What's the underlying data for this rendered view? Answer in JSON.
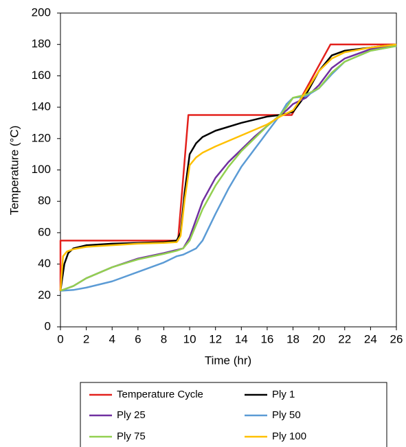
{
  "chart_data": {
    "type": "line",
    "xlabel": "Time (hr)",
    "ylabel": "Temperature (°C)",
    "xlim": [
      0,
      26
    ],
    "xticks": [
      0,
      2,
      4,
      6,
      8,
      10,
      12,
      14,
      16,
      18,
      20,
      22,
      24,
      26
    ],
    "ylim": [
      0,
      200
    ],
    "yticks": [
      0,
      20,
      40,
      60,
      80,
      100,
      120,
      140,
      160,
      180,
      200
    ],
    "grid": false,
    "legend": "bottom",
    "series": [
      {
        "name": "Temperature Cycle",
        "color": "#e3211c",
        "x": [
          0,
          0,
          9.1,
          9.9,
          17.9,
          20.9,
          26
        ],
        "values": [
          23,
          55,
          55,
          135,
          135,
          180,
          180
        ]
      },
      {
        "name": "Ply 1",
        "color": "#000000",
        "x": [
          0,
          0.3,
          0.6,
          1,
          2,
          4,
          6,
          8,
          9,
          9.3,
          9.6,
          10,
          10.5,
          11,
          12,
          14,
          16,
          17,
          18,
          19,
          20,
          21,
          22,
          24,
          26
        ],
        "values": [
          23,
          40,
          47,
          50,
          52,
          53,
          53.5,
          54,
          55,
          60,
          85,
          110,
          117,
          121,
          125,
          130,
          134,
          135,
          137,
          148,
          163,
          173,
          176,
          178,
          180
        ]
      },
      {
        "name": "Ply 25",
        "color": "#7030a0",
        "x": [
          0,
          1,
          2,
          4,
          6,
          8,
          9,
          9.5,
          10,
          11,
          12,
          13,
          14,
          15,
          16,
          17,
          17.5,
          18,
          19,
          20,
          21,
          22,
          24,
          26
        ],
        "values": [
          23,
          26,
          31,
          38,
          43.5,
          47,
          49,
          50,
          57,
          80,
          95,
          105,
          113,
          121,
          128,
          135,
          138,
          142,
          146,
          154,
          165,
          171,
          177,
          180
        ]
      },
      {
        "name": "Ply 50",
        "color": "#5b9bd5",
        "x": [
          0,
          1,
          2,
          4,
          6,
          8,
          9,
          9.5,
          10,
          10.5,
          11,
          12,
          13,
          14,
          15,
          16,
          17,
          17.5,
          18,
          19,
          20,
          21,
          22,
          24,
          26
        ],
        "values": [
          23,
          23.5,
          25,
          29,
          35,
          41,
          45,
          46,
          48,
          50,
          55,
          72,
          88,
          102,
          113,
          124,
          135,
          142,
          146,
          147,
          152,
          161,
          169,
          176,
          179
        ]
      },
      {
        "name": "Ply 75",
        "color": "#92d050",
        "x": [
          0,
          1,
          2,
          4,
          6,
          8,
          9,
          9.5,
          10,
          11,
          12,
          13,
          14,
          15,
          16,
          17,
          17.5,
          18,
          19,
          20,
          21,
          22,
          24,
          26
        ],
        "values": [
          23,
          26,
          31,
          38,
          43,
          46.5,
          48.5,
          50,
          55,
          75,
          90,
          102,
          112,
          120,
          128,
          135,
          140,
          146,
          148,
          152,
          162,
          169,
          176,
          179
        ]
      },
      {
        "name": "Ply 100",
        "color": "#ffc000",
        "x": [
          0,
          0.2,
          0.5,
          1,
          2,
          4,
          6,
          8,
          9,
          9.3,
          9.6,
          10,
          10.5,
          11,
          12,
          14,
          16,
          17,
          18,
          19,
          20,
          21,
          22,
          24,
          26
        ],
        "values": [
          23,
          45,
          48,
          49.5,
          51,
          52,
          53,
          53.5,
          54,
          58,
          80,
          103,
          108,
          111,
          115,
          122,
          129,
          134,
          138,
          150,
          163,
          171,
          175,
          178,
          180
        ]
      }
    ]
  }
}
